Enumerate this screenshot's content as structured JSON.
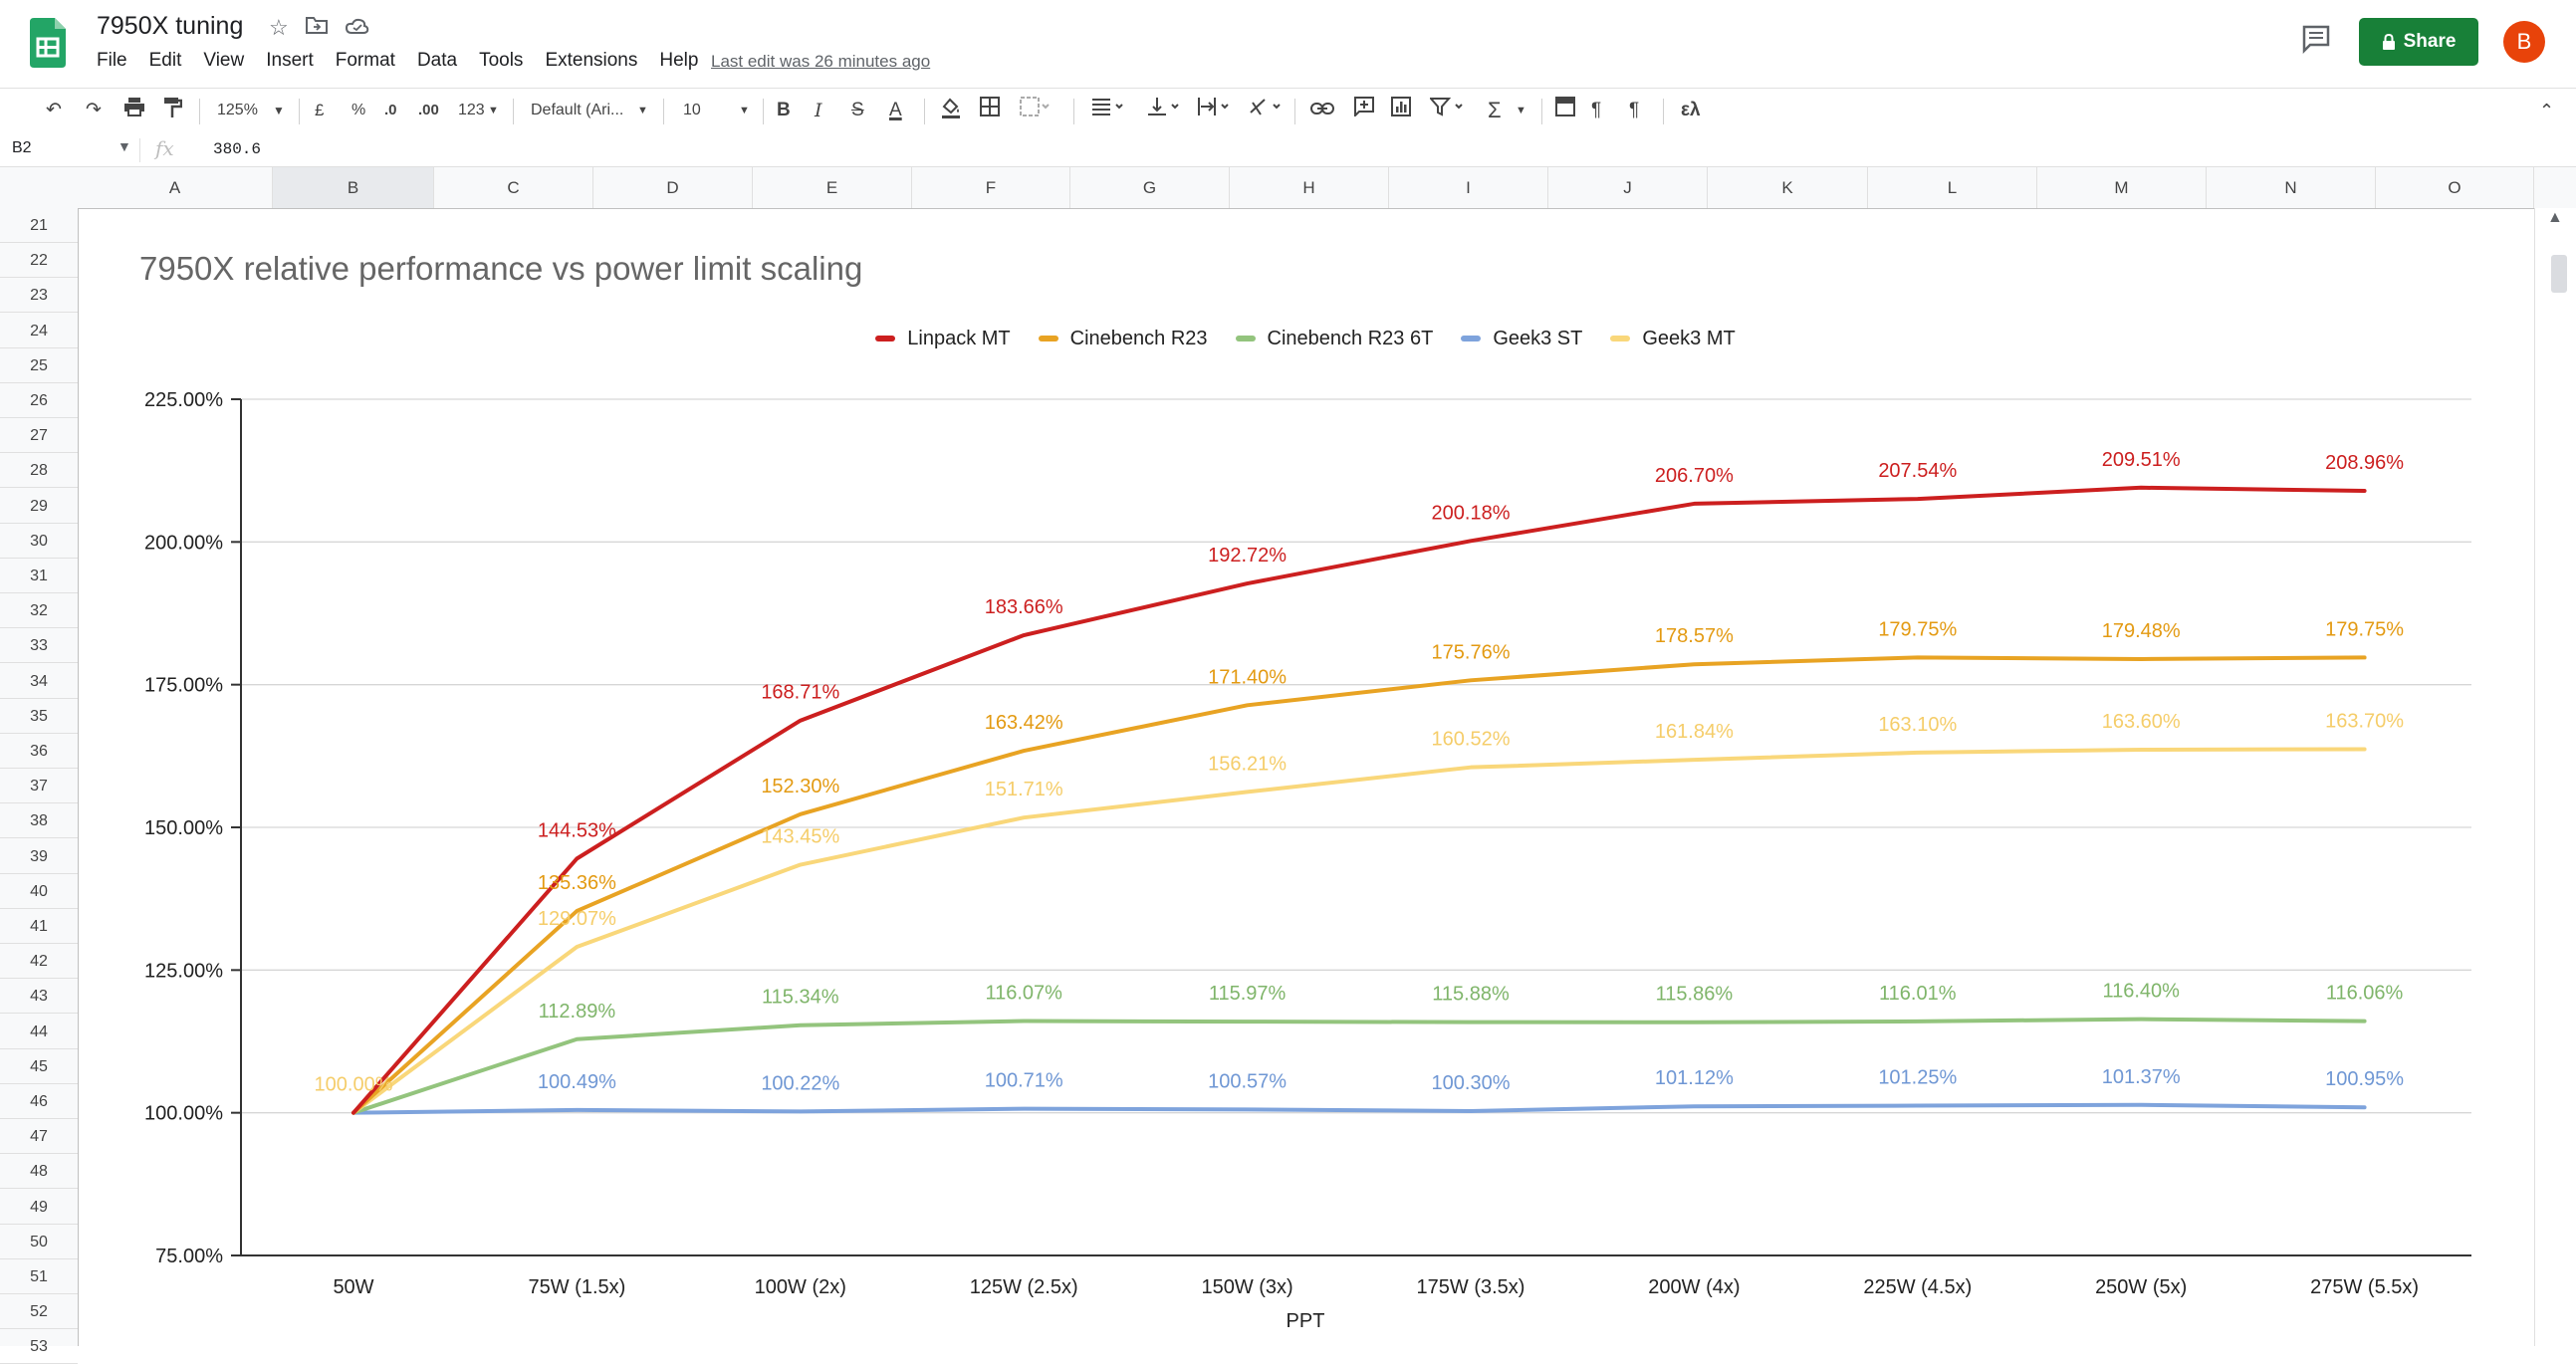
{
  "window": {
    "doc_title": "7950X tuning",
    "menu": [
      "File",
      "Edit",
      "View",
      "Insert",
      "Format",
      "Data",
      "Tools",
      "Extensions",
      "Help"
    ],
    "last_edit": "Last edit was 26 minutes ago",
    "share_label": "Share",
    "avatar_letter": "B"
  },
  "toolbar": {
    "zoom": "125%",
    "currency": "£",
    "percent": "%",
    "dec_decrease": ".0",
    "dec_increase": ".00",
    "number_format": "123",
    "font": "Default (Ari...",
    "font_size": "10",
    "bold": "B",
    "italic": "I",
    "strike": "S",
    "text_color": "A"
  },
  "formula_bar": {
    "cell": "B2",
    "value": "380.6"
  },
  "columns": [
    "A",
    "B",
    "C",
    "D",
    "E",
    "F",
    "G",
    "H",
    "I",
    "J",
    "K",
    "L",
    "M",
    "N",
    "O"
  ],
  "rows": [
    "21",
    "22",
    "23",
    "24",
    "25",
    "26",
    "27",
    "28",
    "29",
    "30",
    "31",
    "32",
    "33",
    "34",
    "35",
    "36",
    "37",
    "38",
    "39",
    "40",
    "41",
    "42",
    "43",
    "44",
    "45",
    "46",
    "47",
    "48",
    "49",
    "50",
    "51",
    "52",
    "53"
  ],
  "colors": {
    "share_green": "#188038",
    "sheets_green": "#23a566",
    "avatar": "#e8430a"
  },
  "chart_data": {
    "type": "line",
    "title": "7950X relative performance vs power limit scaling",
    "xlabel": "PPT",
    "ylabel": "",
    "categories": [
      "50W",
      "75W (1.5x)",
      "100W (2x)",
      "125W (2.5x)",
      "150W (3x)",
      "175W (3.5x)",
      "200W (4x)",
      "225W (4.5x)",
      "250W (5x)",
      "275W (5.5x)"
    ],
    "ylim": [
      75,
      225
    ],
    "yticks": [
      "75.00%",
      "100.00%",
      "125.00%",
      "150.00%",
      "175.00%",
      "200.00%",
      "225.00%"
    ],
    "grid": true,
    "legend_position": "top",
    "series": [
      {
        "name": "Linpack MT",
        "color": "#cc1f1f",
        "label_color": "#cc1f1f",
        "values": [
          100,
          144.53,
          168.71,
          183.66,
          192.72,
          200.18,
          206.7,
          207.54,
          209.51,
          208.96
        ],
        "labels": [
          "",
          "144.53%",
          "168.71%",
          "183.66%",
          "192.72%",
          "200.18%",
          "206.70%",
          "207.54%",
          "209.51%",
          "208.96%"
        ]
      },
      {
        "name": "Cinebench R23",
        "color": "#e8a323",
        "label_color": "#e39a12",
        "values": [
          100,
          135.36,
          152.3,
          163.42,
          171.4,
          175.76,
          178.57,
          179.75,
          179.48,
          179.75
        ],
        "labels": [
          "",
          "135.36%",
          "152.30%",
          "163.42%",
          "171.40%",
          "175.76%",
          "178.57%",
          "179.75%",
          "179.48%",
          "179.75%"
        ]
      },
      {
        "name": "Cinebench R23 6T",
        "color": "#93c47d",
        "label_color": "#7fb56a",
        "values": [
          100,
          112.89,
          115.34,
          116.07,
          115.97,
          115.88,
          115.86,
          116.01,
          116.4,
          116.06
        ],
        "labels": [
          "",
          "112.89%",
          "115.34%",
          "116.07%",
          "115.97%",
          "115.88%",
          "115.86%",
          "116.01%",
          "116.40%",
          "116.06%"
        ]
      },
      {
        "name": "Geek3 ST",
        "color": "#7ea3dc",
        "label_color": "#6f97d4",
        "values": [
          100,
          100.49,
          100.22,
          100.71,
          100.57,
          100.3,
          101.12,
          101.25,
          101.37,
          100.95
        ],
        "labels": [
          "",
          "100.49%",
          "100.22%",
          "100.71%",
          "100.57%",
          "100.30%",
          "101.12%",
          "101.25%",
          "101.37%",
          "100.95%"
        ]
      },
      {
        "name": "Geek3 MT",
        "color": "#f9d77a",
        "label_color": "#f5cd6a",
        "values": [
          100,
          129.07,
          143.45,
          151.71,
          156.21,
          160.52,
          161.84,
          163.1,
          163.6,
          163.7
        ],
        "labels": [
          "100.00%",
          "129.07%",
          "143.45%",
          "151.71%",
          "156.21%",
          "160.52%",
          "161.84%",
          "163.10%",
          "163.60%",
          "163.70%"
        ]
      }
    ]
  }
}
